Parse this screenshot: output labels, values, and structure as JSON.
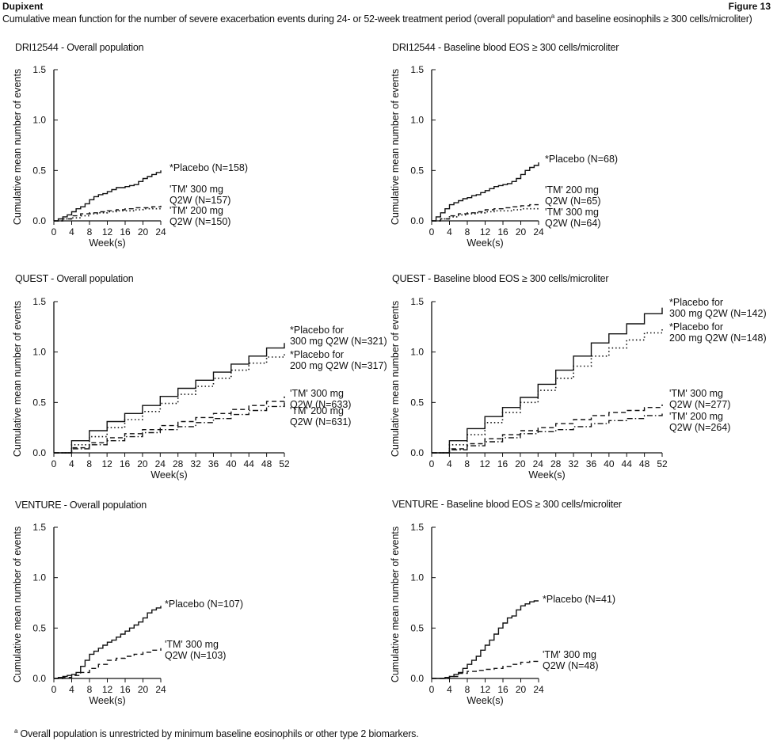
{
  "header": {
    "product": "Dupixent",
    "figure": "Figure 13",
    "caption_main": "Cumulative mean function for the number of severe exacerbation events during 24- or 52-week treatment period (overall population",
    "caption_sup": "a",
    "caption_tail": " and baseline eosinophils ≥ 300 cells/microliter)"
  },
  "footnote": {
    "sup": "a",
    "text": " Overall population is unrestricted by minimum baseline eosinophils or other type 2 biomarkers."
  },
  "chart_data": [
    {
      "type": "line",
      "title": "DRI12544 - Overall population",
      "xlabel": "Week(s)",
      "ylabel": "Cumulative mean number of events",
      "xlim": [
        0,
        24
      ],
      "ylim": [
        0,
        1.5
      ],
      "xticks": [
        0,
        4,
        8,
        12,
        16,
        20,
        24
      ],
      "yticks": [
        0.0,
        0.5,
        1.0,
        1.5
      ],
      "ytick_labels": [
        "0.0",
        "0.5",
        "1.0",
        "1.5"
      ],
      "series": [
        {
          "name": "*Placebo (N=158)",
          "style": "solid",
          "x": [
            0,
            1,
            2,
            3,
            4,
            5,
            6,
            7,
            8,
            9,
            10,
            11,
            12,
            13,
            14,
            15,
            16,
            17,
            18,
            19,
            20,
            21,
            22,
            23,
            24
          ],
          "y": [
            0,
            0.02,
            0.04,
            0.06,
            0.09,
            0.12,
            0.14,
            0.17,
            0.21,
            0.24,
            0.26,
            0.27,
            0.29,
            0.31,
            0.33,
            0.33,
            0.34,
            0.35,
            0.36,
            0.39,
            0.42,
            0.44,
            0.46,
            0.48,
            0.5
          ]
        },
        {
          "name": "'TM' 300 mg Q2W (N=157)",
          "style": "dashed",
          "x": [
            0,
            2,
            4,
            6,
            8,
            10,
            12,
            14,
            16,
            18,
            20,
            22,
            24
          ],
          "y": [
            0,
            0.02,
            0.05,
            0.07,
            0.08,
            0.09,
            0.1,
            0.11,
            0.12,
            0.13,
            0.13,
            0.14,
            0.15
          ]
        },
        {
          "name": "'TM' 200 mg Q2W (N=150)",
          "style": "dotted",
          "x": [
            0,
            2,
            4,
            6,
            8,
            10,
            12,
            14,
            16,
            18,
            20,
            22,
            24
          ],
          "y": [
            0,
            0.02,
            0.03,
            0.05,
            0.07,
            0.08,
            0.09,
            0.1,
            0.1,
            0.11,
            0.12,
            0.12,
            0.13
          ]
        }
      ],
      "labels": [
        {
          "lines": [
            "*Placebo (N=158)"
          ]
        },
        {
          "lines": [
            "'TM' 300 mg",
            "Q2W (N=157)"
          ]
        },
        {
          "lines": [
            "'TM' 200 mg",
            "Q2W (N=150)"
          ]
        }
      ]
    },
    {
      "type": "line",
      "title": "DRI12544 - Baseline blood EOS ≥ 300 cells/microliter",
      "xlabel": "Week(s)",
      "ylabel": "Cumulative mean number of events",
      "xlim": [
        0,
        24
      ],
      "ylim": [
        0,
        1.5
      ],
      "xticks": [
        0,
        4,
        8,
        12,
        16,
        20,
        24
      ],
      "yticks": [
        0.0,
        0.5,
        1.0,
        1.5
      ],
      "ytick_labels": [
        "0.0",
        "0.5",
        "1.0",
        "1.5"
      ],
      "series": [
        {
          "name": "*Placebo (N=68)",
          "style": "solid",
          "x": [
            0,
            1,
            2,
            3,
            4,
            5,
            6,
            7,
            8,
            9,
            10,
            11,
            12,
            13,
            14,
            15,
            16,
            17,
            18,
            19,
            20,
            21,
            22,
            23,
            24
          ],
          "y": [
            0,
            0.04,
            0.08,
            0.12,
            0.16,
            0.18,
            0.2,
            0.22,
            0.23,
            0.25,
            0.26,
            0.28,
            0.3,
            0.32,
            0.34,
            0.35,
            0.36,
            0.37,
            0.39,
            0.42,
            0.46,
            0.5,
            0.53,
            0.55,
            0.58
          ]
        },
        {
          "name": "'TM' 200 mg Q2W (N=65)",
          "style": "dashed",
          "x": [
            0,
            2,
            4,
            6,
            8,
            10,
            12,
            14,
            16,
            18,
            20,
            22,
            24
          ],
          "y": [
            0,
            0.02,
            0.05,
            0.07,
            0.08,
            0.09,
            0.11,
            0.12,
            0.13,
            0.14,
            0.15,
            0.16,
            0.16
          ]
        },
        {
          "name": "'TM' 300 mg Q2W (N=64)",
          "style": "dotted",
          "x": [
            0,
            2,
            4,
            6,
            8,
            10,
            12,
            14,
            16,
            18,
            20,
            22,
            24
          ],
          "y": [
            0,
            0.02,
            0.04,
            0.06,
            0.07,
            0.08,
            0.09,
            0.1,
            0.1,
            0.11,
            0.12,
            0.12,
            0.13
          ]
        }
      ],
      "labels": [
        {
          "lines": [
            "*Placebo (N=68)"
          ]
        },
        {
          "lines": [
            "'TM' 200 mg",
            "Q2W (N=65)"
          ]
        },
        {
          "lines": [
            "'TM' 300 mg",
            "Q2W (N=64)"
          ]
        }
      ]
    },
    {
      "type": "line",
      "title": "QUEST - Overall population",
      "xlabel": "Week(s)",
      "ylabel": "Cumulative mean number of events",
      "xlim": [
        0,
        52
      ],
      "ylim": [
        0,
        1.5
      ],
      "xticks": [
        0,
        4,
        8,
        12,
        16,
        20,
        24,
        28,
        32,
        36,
        40,
        44,
        48,
        52
      ],
      "yticks": [
        0.0,
        0.5,
        1.0,
        1.5
      ],
      "ytick_labels": [
        "0.0",
        "0.5",
        "1.0",
        "1.5"
      ],
      "series": [
        {
          "name": "*Placebo for 300 mg Q2W (N=321)",
          "style": "solid",
          "x": [
            0,
            4,
            8,
            12,
            16,
            20,
            24,
            28,
            32,
            36,
            40,
            44,
            48,
            52
          ],
          "y": [
            0,
            0.12,
            0.22,
            0.31,
            0.39,
            0.47,
            0.56,
            0.64,
            0.72,
            0.8,
            0.88,
            0.96,
            1.04,
            1.09
          ]
        },
        {
          "name": "*Placebo for 200 mg Q2W (N=317)",
          "style": "dotted",
          "x": [
            0,
            4,
            8,
            12,
            16,
            20,
            24,
            28,
            32,
            36,
            40,
            44,
            48,
            52
          ],
          "y": [
            0,
            0.08,
            0.16,
            0.25,
            0.33,
            0.41,
            0.49,
            0.58,
            0.66,
            0.74,
            0.82,
            0.89,
            0.95,
            1.0
          ]
        },
        {
          "name": "'TM' 300 mg Q2W (N=633)",
          "style": "dashed",
          "x": [
            0,
            4,
            8,
            12,
            16,
            20,
            24,
            28,
            32,
            36,
            40,
            44,
            48,
            52
          ],
          "y": [
            0,
            0.05,
            0.1,
            0.15,
            0.19,
            0.23,
            0.27,
            0.31,
            0.35,
            0.39,
            0.43,
            0.47,
            0.51,
            0.56
          ]
        },
        {
          "name": "'TM' 200 mg Q2W (N=631)",
          "style": "dashdot",
          "x": [
            0,
            4,
            8,
            12,
            16,
            20,
            24,
            28,
            32,
            36,
            40,
            44,
            48,
            52
          ],
          "y": [
            0,
            0.04,
            0.08,
            0.12,
            0.16,
            0.2,
            0.23,
            0.26,
            0.3,
            0.34,
            0.38,
            0.42,
            0.46,
            0.5
          ]
        }
      ],
      "labels": [
        {
          "lines": [
            "*Placebo for",
            "300 mg Q2W (N=321)"
          ]
        },
        {
          "lines": [
            "*Placebo for",
            "200 mg Q2W (N=317)"
          ]
        },
        {
          "lines": [
            "'TM' 300 mg",
            "Q2W (N=633)"
          ]
        },
        {
          "lines": [
            "'TM' 200 mg",
            "Q2W (N=631)"
          ]
        }
      ]
    },
    {
      "type": "line",
      "title": "QUEST - Baseline blood EOS ≥ 300 cells/microliter",
      "xlabel": "Week(s)",
      "ylabel": "Cumulative mean number of events",
      "xlim": [
        0,
        52
      ],
      "ylim": [
        0,
        1.5
      ],
      "xticks": [
        0,
        4,
        8,
        12,
        16,
        20,
        24,
        28,
        32,
        36,
        40,
        44,
        48,
        52
      ],
      "yticks": [
        0.0,
        0.5,
        1.0,
        1.5
      ],
      "ytick_labels": [
        "0.0",
        "0.5",
        "1.0",
        "1.5"
      ],
      "series": [
        {
          "name": "*Placebo for 300 mg Q2W (N=142)",
          "style": "solid",
          "x": [
            0,
            4,
            8,
            12,
            16,
            20,
            24,
            28,
            32,
            36,
            40,
            44,
            48,
            52
          ],
          "y": [
            0,
            0.12,
            0.24,
            0.36,
            0.45,
            0.55,
            0.68,
            0.82,
            0.96,
            1.09,
            1.18,
            1.28,
            1.38,
            1.44
          ]
        },
        {
          "name": "*Placebo for 200 mg Q2W (N=148)",
          "style": "dotted",
          "x": [
            0,
            4,
            8,
            12,
            16,
            20,
            24,
            28,
            32,
            36,
            40,
            44,
            48,
            52
          ],
          "y": [
            0,
            0.08,
            0.18,
            0.3,
            0.4,
            0.5,
            0.62,
            0.74,
            0.86,
            0.96,
            1.04,
            1.12,
            1.19,
            1.23
          ]
        },
        {
          "name": "'TM' 300 mg Q2W (N=277)",
          "style": "dashed",
          "x": [
            0,
            4,
            8,
            12,
            16,
            20,
            24,
            28,
            32,
            36,
            40,
            44,
            48,
            52
          ],
          "y": [
            0,
            0.04,
            0.09,
            0.14,
            0.18,
            0.22,
            0.25,
            0.29,
            0.33,
            0.37,
            0.4,
            0.42,
            0.45,
            0.48
          ]
        },
        {
          "name": "'TM' 200 mg Q2W (N=264)",
          "style": "dashdot",
          "x": [
            0,
            4,
            8,
            12,
            16,
            20,
            24,
            28,
            32,
            36,
            40,
            44,
            48,
            52
          ],
          "y": [
            0,
            0.03,
            0.07,
            0.11,
            0.15,
            0.19,
            0.21,
            0.23,
            0.26,
            0.29,
            0.32,
            0.34,
            0.37,
            0.41
          ]
        }
      ],
      "labels": [
        {
          "lines": [
            "*Placebo for",
            "300 mg Q2W (N=142)"
          ]
        },
        {
          "lines": [
            "*Placebo for",
            "200 mg Q2W (N=148)"
          ]
        },
        {
          "lines": [
            "'TM' 300 mg",
            "Q2W (N=277)"
          ]
        },
        {
          "lines": [
            "'TM' 200 mg",
            "Q2W (N=264)"
          ]
        }
      ]
    },
    {
      "type": "line",
      "title": "VENTURE - Overall population",
      "xlabel": "Week(s)",
      "ylabel": "Cumulative mean number of events",
      "xlim": [
        0,
        24
      ],
      "ylim": [
        0,
        1.5
      ],
      "xticks": [
        0,
        4,
        8,
        12,
        16,
        20,
        24
      ],
      "yticks": [
        0.0,
        0.5,
        1.0,
        1.5
      ],
      "ytick_labels": [
        "0.0",
        "0.5",
        "1.0",
        "1.5"
      ],
      "series": [
        {
          "name": "*Placebo (N=107)",
          "style": "solid",
          "x": [
            0,
            1,
            2,
            3,
            4,
            5,
            6,
            7,
            8,
            9,
            10,
            11,
            12,
            13,
            14,
            15,
            16,
            17,
            18,
            19,
            20,
            21,
            22,
            23,
            24
          ],
          "y": [
            0,
            0.01,
            0.02,
            0.03,
            0.04,
            0.06,
            0.12,
            0.18,
            0.24,
            0.27,
            0.3,
            0.33,
            0.36,
            0.38,
            0.41,
            0.44,
            0.47,
            0.5,
            0.53,
            0.56,
            0.6,
            0.65,
            0.68,
            0.7,
            0.72
          ]
        },
        {
          "name": "'TM' 300 mg Q2W (N=103)",
          "style": "dashed",
          "x": [
            0,
            2,
            4,
            6,
            8,
            10,
            12,
            14,
            16,
            18,
            20,
            22,
            24
          ],
          "y": [
            0,
            0.01,
            0.03,
            0.06,
            0.1,
            0.14,
            0.18,
            0.2,
            0.22,
            0.24,
            0.26,
            0.28,
            0.3
          ]
        }
      ],
      "labels": [
        {
          "lines": [
            "*Placebo (N=107)"
          ]
        },
        {
          "lines": [
            "'TM' 300 mg",
            "Q2W (N=103)"
          ]
        }
      ]
    },
    {
      "type": "line",
      "title": "VENTURE - Baseline blood EOS ≥ 300 cells/microliter",
      "xlabel": "Week(s)",
      "ylabel": "Cumulative mean number of events",
      "xlim": [
        0,
        24
      ],
      "ylim": [
        0,
        1.5
      ],
      "xticks": [
        0,
        4,
        8,
        12,
        16,
        20,
        24
      ],
      "yticks": [
        0.0,
        0.5,
        1.0,
        1.5
      ],
      "ytick_labels": [
        "0.0",
        "0.5",
        "1.0",
        "1.5"
      ],
      "series": [
        {
          "name": "*Placebo (N=41)",
          "style": "solid",
          "x": [
            0,
            1,
            2,
            3,
            4,
            5,
            6,
            7,
            8,
            9,
            10,
            11,
            12,
            13,
            14,
            15,
            16,
            17,
            18,
            19,
            20,
            21,
            22,
            23,
            24
          ],
          "y": [
            0,
            0,
            0,
            0.01,
            0.02,
            0.04,
            0.06,
            0.1,
            0.14,
            0.18,
            0.22,
            0.28,
            0.33,
            0.38,
            0.44,
            0.5,
            0.55,
            0.6,
            0.62,
            0.68,
            0.72,
            0.74,
            0.76,
            0.77,
            0.77
          ]
        },
        {
          "name": "'TM' 300 mg Q2W (N=48)",
          "style": "dashed",
          "x": [
            0,
            2,
            4,
            6,
            8,
            10,
            12,
            14,
            16,
            18,
            20,
            22,
            24
          ],
          "y": [
            0,
            0,
            0.02,
            0.05,
            0.07,
            0.08,
            0.09,
            0.1,
            0.12,
            0.14,
            0.16,
            0.17,
            0.18
          ]
        }
      ],
      "labels": [
        {
          "lines": [
            "*Placebo (N=41)"
          ]
        },
        {
          "lines": [
            "'TM' 300 mg",
            "Q2W (N=48)"
          ]
        }
      ]
    }
  ]
}
